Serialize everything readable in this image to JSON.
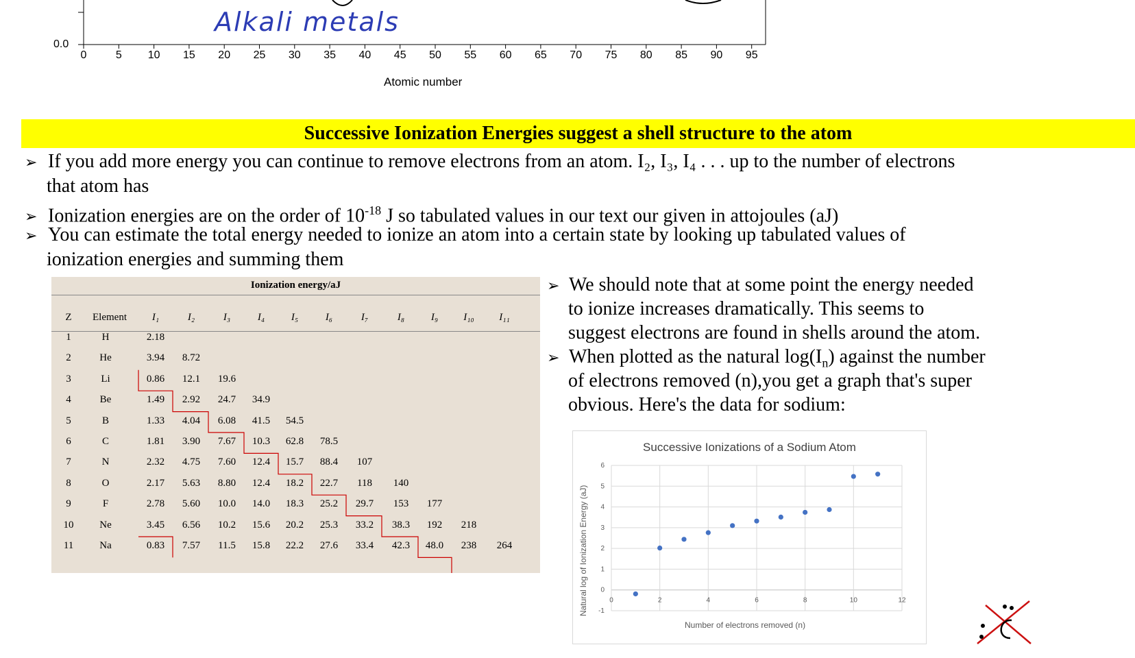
{
  "top_chart": {
    "y_zero_label": "0.0",
    "x_ticks": [
      "0",
      "5",
      "10",
      "15",
      "20",
      "25",
      "30",
      "35",
      "40",
      "45",
      "50",
      "55",
      "60",
      "65",
      "70",
      "75",
      "80",
      "85",
      "90",
      "95"
    ],
    "x_axis_label": "Atomic number",
    "handwritten_note": "Alkali metals"
  },
  "banner": {
    "title": "Successive Ionization Energies suggest a shell structure to the atom"
  },
  "bullets": {
    "b1_line1": "If you add more energy you can continue to remove electrons from an atom. I₂, I₃, I₄ . . . up to the number of electrons",
    "b1_line2": "that atom has",
    "b2_pre": "Ionization energies are on the order of 10",
    "b2_sup": "-18",
    "b2_post": " J so tabulated values in our text our given in attojoules (aJ)",
    "b3_line1": "You can estimate the total energy needed to ionize an atom into a certain state by looking up tabulated values of",
    "b3_line2": "ionization energies and summing them"
  },
  "table": {
    "group_header": "Ionization energy/aJ",
    "col_z": "Z",
    "col_element": "Element",
    "ion_cols": [
      "I₁",
      "I₂",
      "I₃",
      "I₄",
      "I₅",
      "I₆",
      "I₇",
      "I₈",
      "I₉",
      "I₁₀",
      "I₁₁"
    ],
    "rows": [
      {
        "z": "1",
        "el": "H",
        "v": [
          "2.18"
        ]
      },
      {
        "z": "2",
        "el": "He",
        "v": [
          "3.94",
          "8.72"
        ]
      },
      {
        "z": "3",
        "el": "Li",
        "v": [
          "0.86",
          "12.1",
          "19.6"
        ]
      },
      {
        "z": "4",
        "el": "Be",
        "v": [
          "1.49",
          "2.92",
          "24.7",
          "34.9"
        ]
      },
      {
        "z": "5",
        "el": "B",
        "v": [
          "1.33",
          "4.04",
          "6.08",
          "41.5",
          "54.5"
        ]
      },
      {
        "z": "6",
        "el": "C",
        "v": [
          "1.81",
          "3.90",
          "7.67",
          "10.3",
          "62.8",
          "78.5"
        ]
      },
      {
        "z": "7",
        "el": "N",
        "v": [
          "2.32",
          "4.75",
          "7.60",
          "12.4",
          "15.7",
          "88.4",
          "107"
        ]
      },
      {
        "z": "8",
        "el": "O",
        "v": [
          "2.17",
          "5.63",
          "8.80",
          "12.4",
          "18.2",
          "22.7",
          "118",
          "140"
        ]
      },
      {
        "z": "9",
        "el": "F",
        "v": [
          "2.78",
          "5.60",
          "10.0",
          "14.0",
          "18.3",
          "25.2",
          "29.7",
          "153",
          "177"
        ]
      },
      {
        "z": "10",
        "el": "Ne",
        "v": [
          "3.45",
          "6.56",
          "10.2",
          "15.6",
          "20.2",
          "25.3",
          "33.2",
          "38.3",
          "192",
          "218"
        ]
      },
      {
        "z": "11",
        "el": "Na",
        "v": [
          "0.83",
          "7.57",
          "11.5",
          "15.8",
          "22.2",
          "27.6",
          "33.4",
          "42.3",
          "48.0",
          "238",
          "264"
        ]
      }
    ]
  },
  "right_text": {
    "r1_line1": "We should note that at some point the energy needed",
    "r1_line2": "to ionize increases dramatically. This seems to",
    "r1_line3": "suggest electrons are found in shells around the atom.",
    "r2_line1_pre": "When plotted as the natural log(I",
    "r2_line1_sub": "n",
    "r2_line1_post": ") against the number",
    "r2_line2": "of electrons removed (n),you get a graph that's super",
    "r2_line3": "obvious. Here's the data for sodium:"
  },
  "chart_data": {
    "type": "scatter",
    "title": "Successive Ionizations of a Sodium Atom",
    "xlabel": "Number of electrons removed (n)",
    "ylabel": "Natural log of Ionization Energy (aJ)",
    "xlim": [
      0,
      12
    ],
    "ylim": [
      -1,
      6
    ],
    "x_ticks": [
      0,
      2,
      4,
      6,
      8,
      10,
      12
    ],
    "y_ticks": [
      -1,
      0,
      1,
      2,
      3,
      4,
      5,
      6
    ],
    "grid": true,
    "x": [
      1,
      2,
      3,
      4,
      5,
      6,
      7,
      8,
      9,
      10,
      11
    ],
    "y": [
      -0.19,
      2.02,
      2.44,
      2.76,
      3.1,
      3.32,
      3.51,
      3.74,
      3.87,
      5.47,
      5.58
    ],
    "point_color": "#4472c4"
  },
  "colors": {
    "banner": "#ffff00",
    "table_bg": "#e8e0d5",
    "stair_line": "#cc0000",
    "handwriting": "#2c3cb4"
  }
}
